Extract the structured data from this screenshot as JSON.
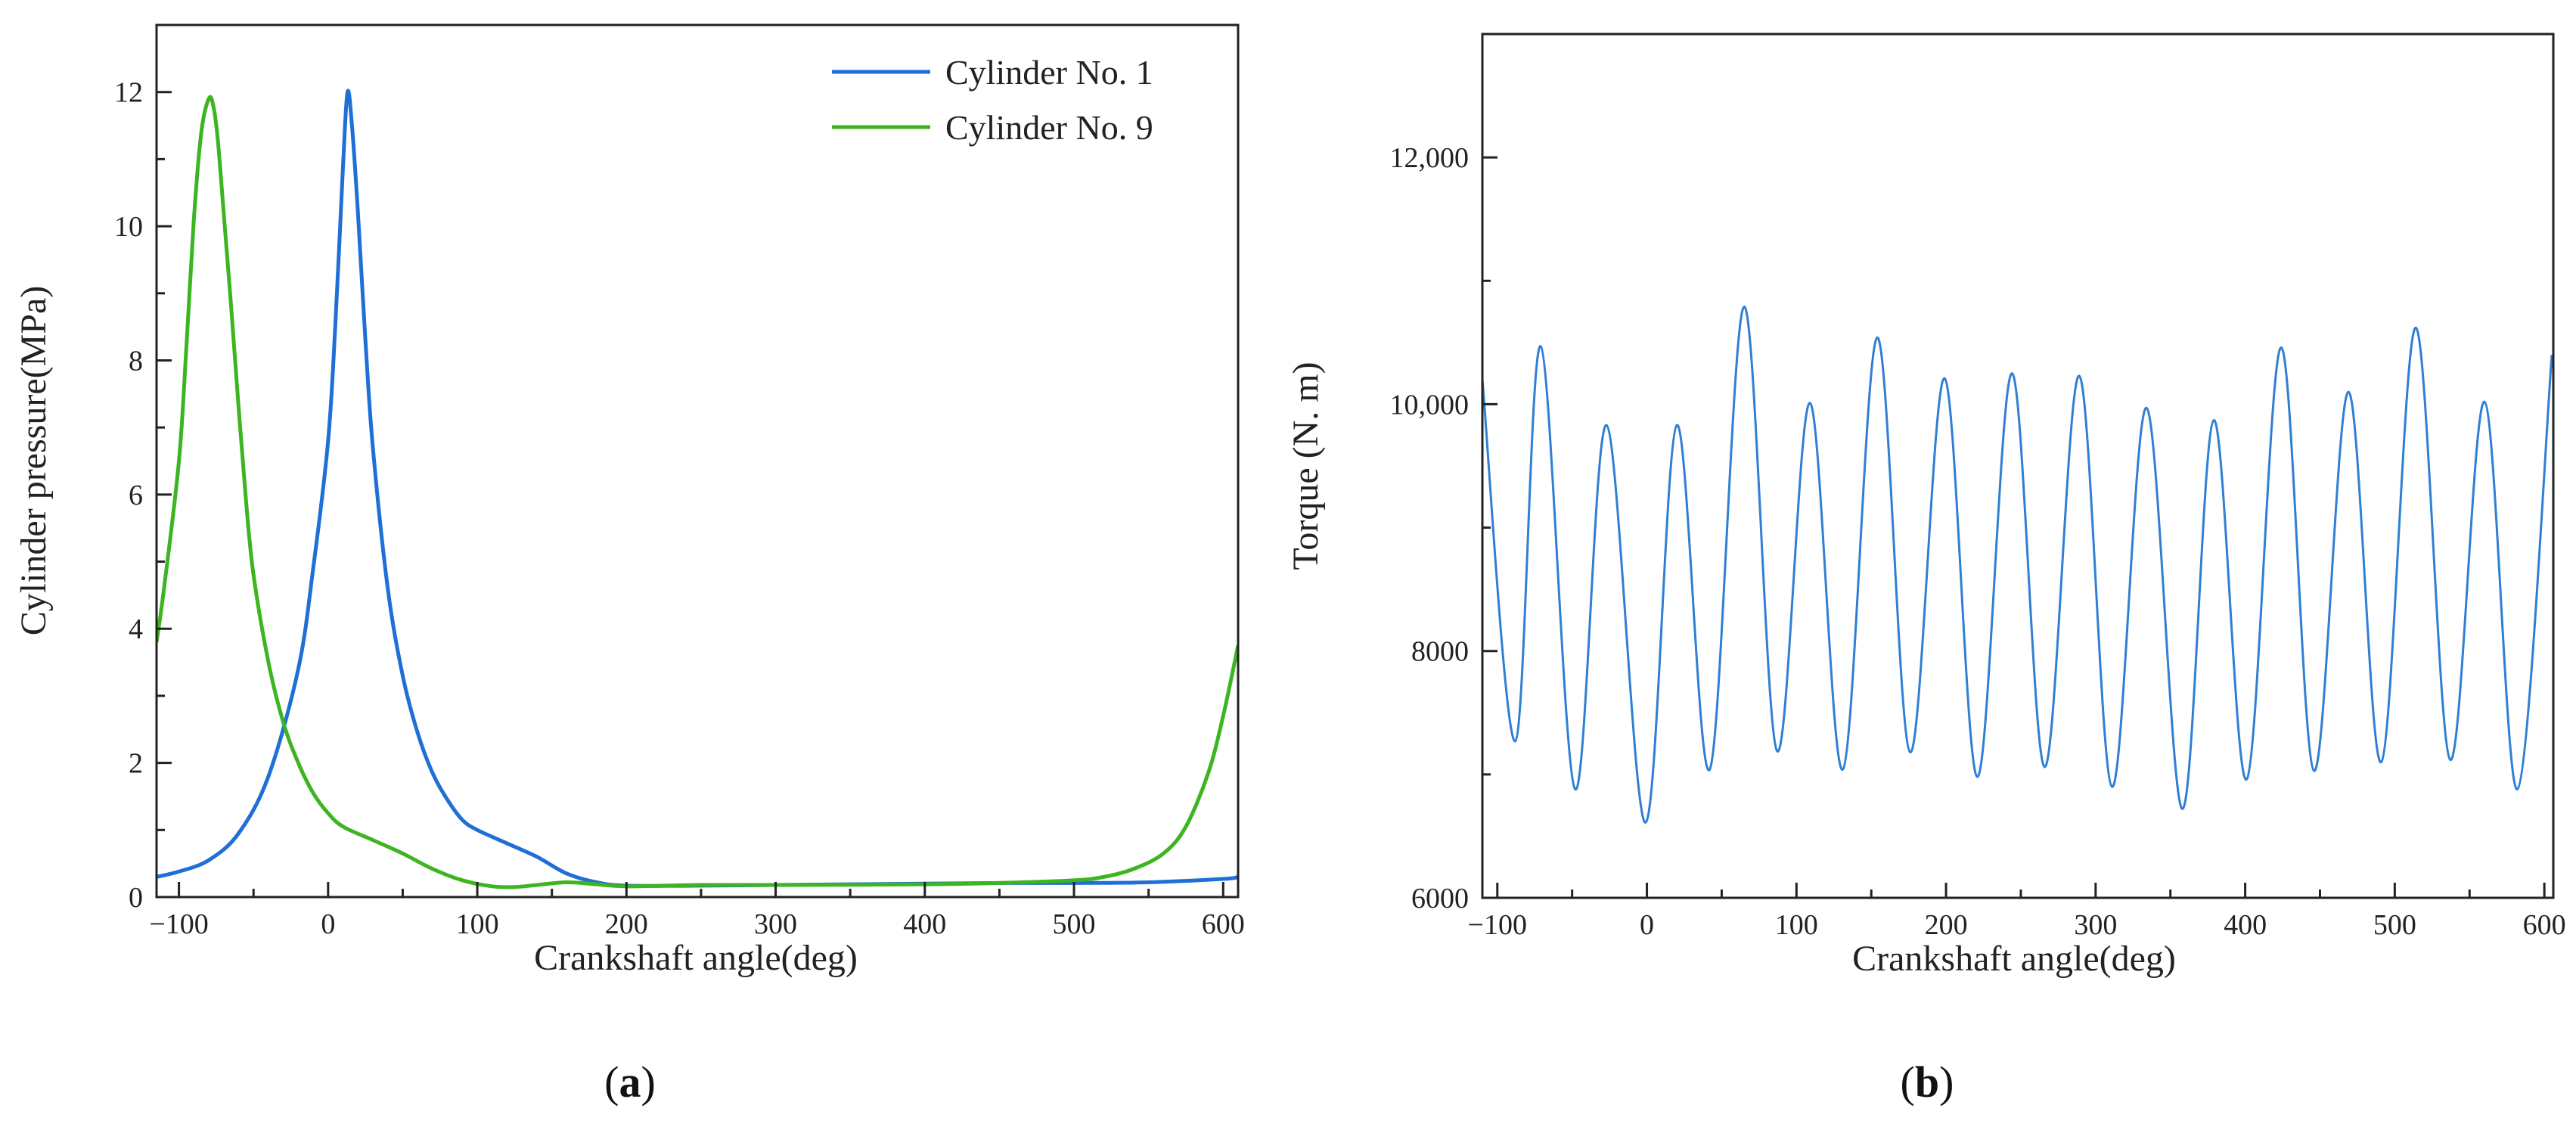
{
  "chart_data": [
    {
      "type": "line",
      "panel_label": {
        "open": "(",
        "letter": "a",
        "close": ")"
      },
      "xlabel": "Crankshaft angle(deg)",
      "ylabel": "Cylinder pressure(MPa)",
      "xlim": [
        -115,
        610
      ],
      "ylim": [
        0,
        13
      ],
      "xticks": [
        -100,
        0,
        100,
        200,
        300,
        400,
        500,
        600
      ],
      "xtick_labels": [
        "−100",
        "0",
        "100",
        "200",
        "300",
        "400",
        "500",
        "600"
      ],
      "yticks": [
        0,
        2,
        4,
        6,
        8,
        10,
        12
      ],
      "ytick_labels": [
        "0",
        "2",
        "4",
        "6",
        "8",
        "10",
        "12"
      ],
      "legend_position": "top-right",
      "series": [
        {
          "name": "Cylinder No. 1",
          "color": "#1f6fd6",
          "x": [
            -115,
            -100,
            -80,
            -60,
            -40,
            -20,
            -10,
            0,
            5,
            10,
            13,
            16,
            20,
            25,
            30,
            40,
            50,
            60,
            70,
            80,
            90,
            100,
            120,
            140,
            160,
            180,
            200,
            250,
            300,
            350,
            400,
            450,
            500,
            550,
            600,
            610
          ],
          "y": [
            0.3,
            0.38,
            0.55,
            0.95,
            1.8,
            3.4,
            4.9,
            6.8,
            8.6,
            10.9,
            12.0,
            11.5,
            10.2,
            8.3,
            6.7,
            4.6,
            3.3,
            2.45,
            1.85,
            1.45,
            1.15,
            1.0,
            0.8,
            0.6,
            0.35,
            0.22,
            0.17,
            0.17,
            0.18,
            0.19,
            0.2,
            0.21,
            0.21,
            0.22,
            0.27,
            0.3
          ]
        },
        {
          "name": "Cylinder No. 9",
          "color": "#3cb521",
          "x": [
            -115,
            -110,
            -100,
            -95,
            -90,
            -85,
            -80,
            -77,
            -74,
            -70,
            -65,
            -60,
            -55,
            -50,
            -40,
            -30,
            -20,
            -10,
            0,
            10,
            30,
            50,
            70,
            90,
            110,
            125,
            140,
            160,
            180,
            200,
            250,
            300,
            400,
            450,
            500,
            520,
            540,
            560,
            575,
            590,
            600,
            610
          ],
          "y": [
            3.8,
            4.6,
            6.5,
            8.2,
            10.1,
            11.4,
            11.9,
            11.8,
            11.3,
            10.2,
            8.8,
            7.3,
            5.9,
            4.8,
            3.5,
            2.6,
            2.0,
            1.55,
            1.25,
            1.05,
            0.85,
            0.65,
            0.42,
            0.25,
            0.16,
            0.15,
            0.18,
            0.22,
            0.19,
            0.16,
            0.18,
            0.18,
            0.19,
            0.21,
            0.25,
            0.3,
            0.42,
            0.65,
            1.05,
            1.85,
            2.7,
            3.75
          ]
        }
      ]
    },
    {
      "type": "line",
      "panel_label": {
        "open": "(",
        "letter": "b",
        "close": ")"
      },
      "xlabel": "Crankshaft angle(deg)",
      "ylabel": "Torque (N. m)",
      "xlim": [
        -110,
        606
      ],
      "ylim": [
        6000,
        13000
      ],
      "xticks": [
        -100,
        0,
        100,
        200,
        300,
        400,
        500,
        600
      ],
      "xtick_labels": [
        "−100",
        "0",
        "100",
        "200",
        "300",
        "400",
        "500",
        "600"
      ],
      "yticks": [
        6000,
        8000,
        10000,
        12000
      ],
      "ytick_labels": [
        "6000",
        "8000",
        "10,000",
        "12,000"
      ],
      "series": [
        {
          "name": "Torque",
          "color": "#2f7fd4",
          "x": [
            -110,
            -88,
            -71,
            -48,
            -27,
            -1,
            20,
            42,
            65,
            87,
            109,
            131,
            154,
            176,
            199,
            221,
            244,
            266,
            289,
            311,
            334,
            358,
            379,
            401,
            424,
            446,
            469,
            491,
            514,
            537,
            560,
            582,
            605
          ],
          "y": [
            10200,
            7270,
            10470,
            6880,
            9830,
            6610,
            9830,
            7040,
            10790,
            7190,
            10010,
            7040,
            10540,
            7180,
            10210,
            6980,
            10250,
            7060,
            10230,
            6900,
            9970,
            6720,
            9870,
            6960,
            10460,
            7030,
            10100,
            7100,
            10620,
            7120,
            10020,
            6880,
            10400
          ]
        }
      ]
    }
  ]
}
